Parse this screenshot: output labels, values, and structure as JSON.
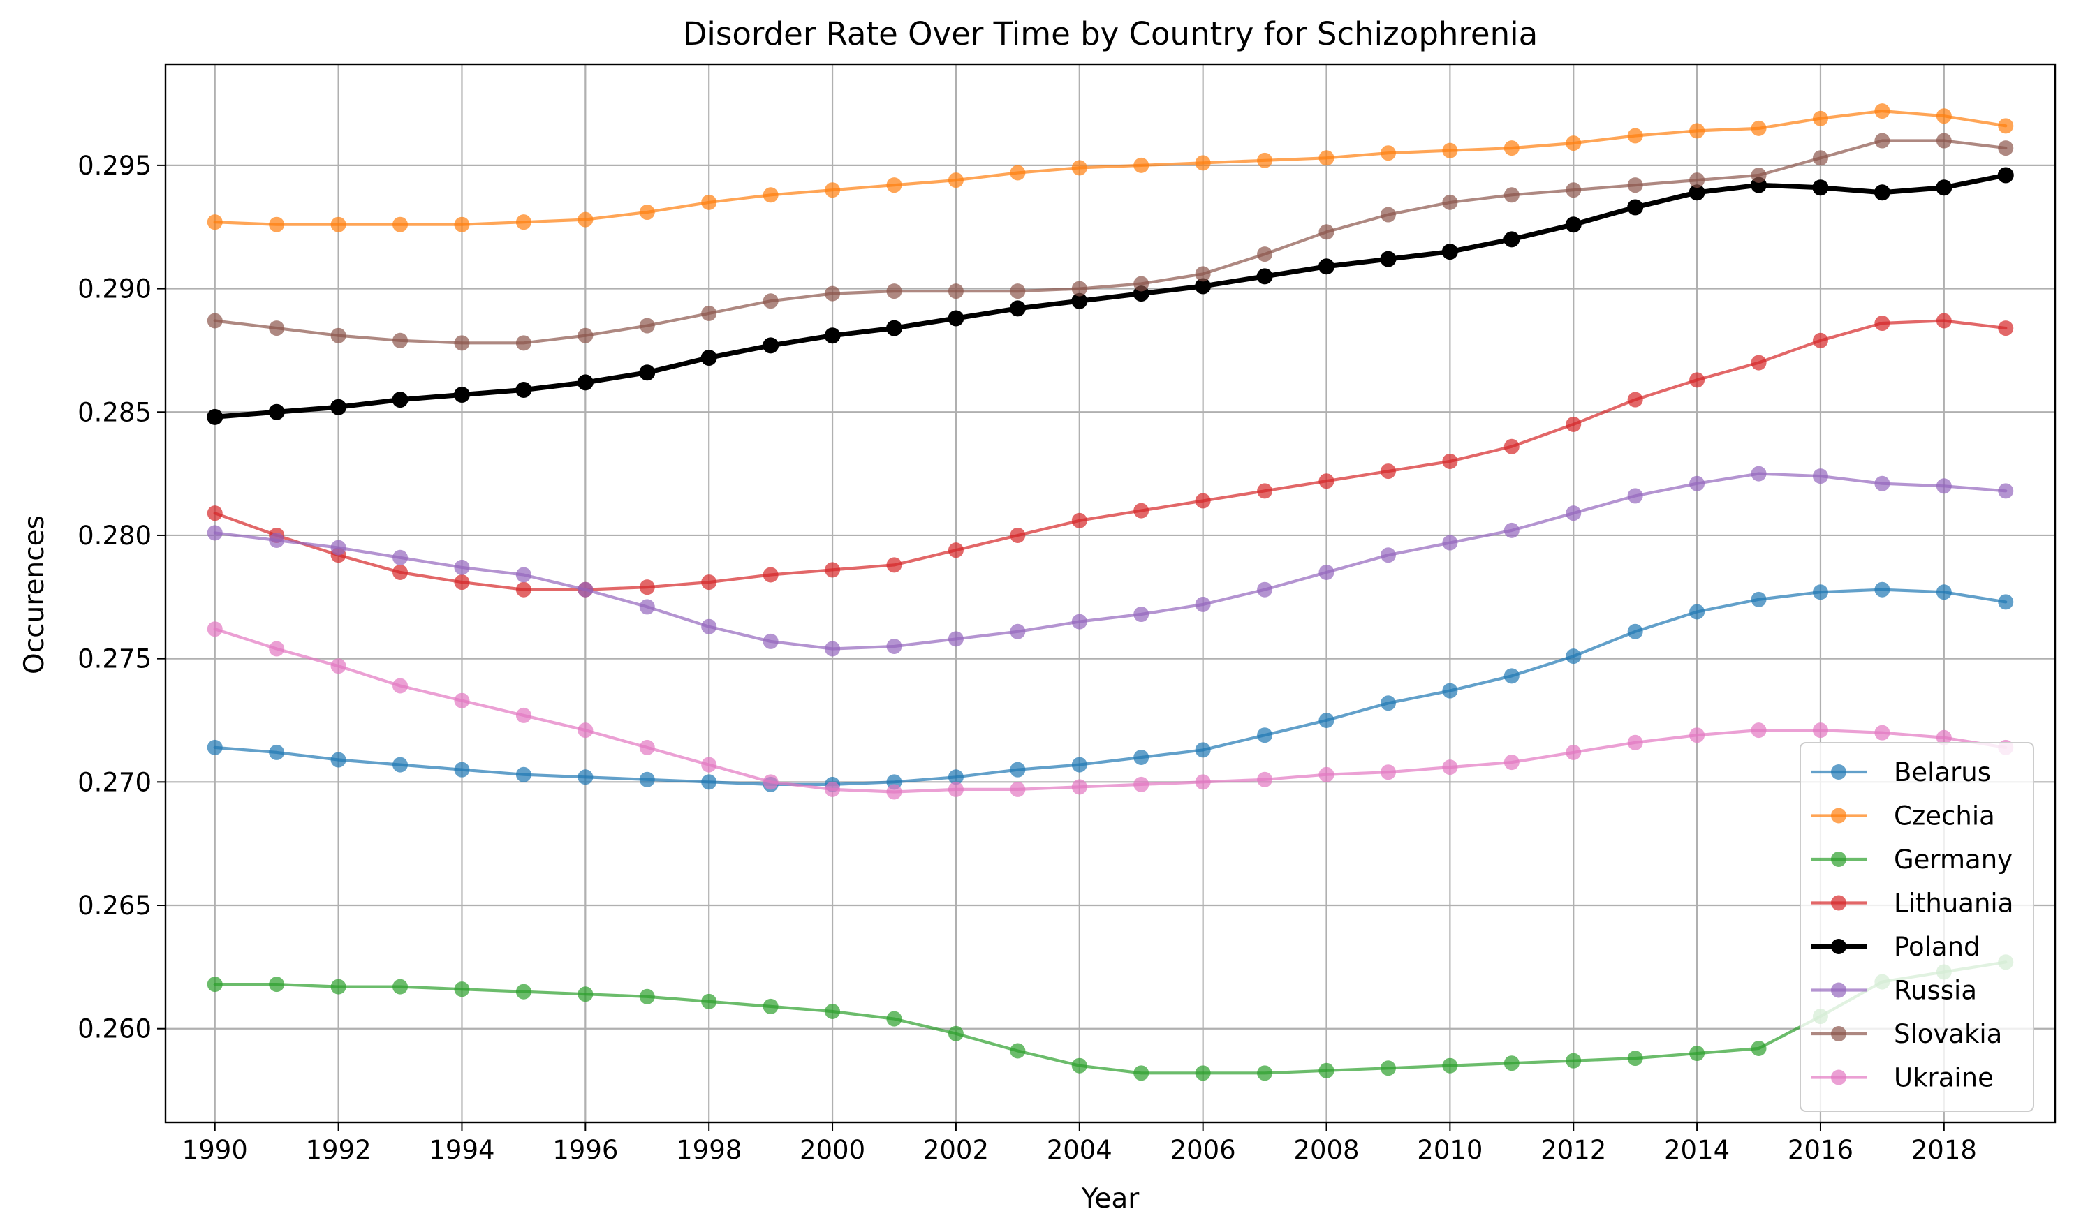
{
  "chart_data": {
    "type": "line",
    "title": "Disorder Rate Over Time by Country for Schizophrenia",
    "xlabel": "Year",
    "ylabel": "Occurences",
    "xlim": [
      1989.2,
      2019.8
    ],
    "ylim": [
      0.2562,
      0.2991
    ],
    "x_ticks": [
      1990,
      1992,
      1994,
      1996,
      1998,
      2000,
      2002,
      2004,
      2006,
      2008,
      2010,
      2012,
      2014,
      2016,
      2018
    ],
    "y_ticks": [
      0.26,
      0.265,
      0.27,
      0.275,
      0.28,
      0.285,
      0.29,
      0.295
    ],
    "y_tick_labels": [
      "0.260",
      "0.265",
      "0.270",
      "0.275",
      "0.280",
      "0.285",
      "0.290",
      "0.295"
    ],
    "grid": true,
    "legend_position": "lower-right",
    "x": [
      1990,
      1991,
      1992,
      1993,
      1994,
      1995,
      1996,
      1997,
      1998,
      1999,
      2000,
      2001,
      2002,
      2003,
      2004,
      2005,
      2006,
      2007,
      2008,
      2009,
      2010,
      2011,
      2012,
      2013,
      2014,
      2015,
      2016,
      2017,
      2018,
      2019
    ],
    "series": [
      {
        "name": "Belarus",
        "color": "#1f77b4",
        "highlight": false,
        "values": [
          0.2714,
          0.2712,
          0.2709,
          0.2707,
          0.2705,
          0.2703,
          0.2702,
          0.2701,
          0.27,
          0.2699,
          0.2699,
          0.27,
          0.2702,
          0.2705,
          0.2707,
          0.271,
          0.2713,
          0.2719,
          0.2725,
          0.2732,
          0.2737,
          0.2743,
          0.2751,
          0.2761,
          0.2769,
          0.2774,
          0.2777,
          0.2778,
          0.2777,
          0.2773
        ]
      },
      {
        "name": "Czechia",
        "color": "#ff7f0e",
        "highlight": false,
        "values": [
          0.2927,
          0.2926,
          0.2926,
          0.2926,
          0.2926,
          0.2927,
          0.2928,
          0.2931,
          0.2935,
          0.2938,
          0.294,
          0.2942,
          0.2944,
          0.2947,
          0.2949,
          0.295,
          0.2951,
          0.2952,
          0.2953,
          0.2955,
          0.2956,
          0.2957,
          0.2959,
          0.2962,
          0.2964,
          0.2965,
          0.2969,
          0.2972,
          0.297,
          0.2966
        ]
      },
      {
        "name": "Germany",
        "color": "#2ca02c",
        "highlight": false,
        "values": [
          0.2618,
          0.2618,
          0.2617,
          0.2617,
          0.2616,
          0.2615,
          0.2614,
          0.2613,
          0.2611,
          0.2609,
          0.2607,
          0.2604,
          0.2598,
          0.2591,
          0.2585,
          0.2582,
          0.2582,
          0.2582,
          0.2583,
          0.2584,
          0.2585,
          0.2586,
          0.2587,
          0.2588,
          0.259,
          0.2592,
          0.2605,
          0.2619,
          0.2623,
          0.2627
        ]
      },
      {
        "name": "Lithuania",
        "color": "#d62728",
        "highlight": false,
        "values": [
          0.2809,
          0.28,
          0.2792,
          0.2785,
          0.2781,
          0.2778,
          0.2778,
          0.2779,
          0.2781,
          0.2784,
          0.2786,
          0.2788,
          0.2794,
          0.28,
          0.2806,
          0.281,
          0.2814,
          0.2818,
          0.2822,
          0.2826,
          0.283,
          0.2836,
          0.2845,
          0.2855,
          0.2863,
          0.287,
          0.2879,
          0.2886,
          0.2887,
          0.2884
        ]
      },
      {
        "name": "Poland",
        "color": "#000000",
        "highlight": true,
        "values": [
          0.2848,
          0.285,
          0.2852,
          0.2855,
          0.2857,
          0.2859,
          0.2862,
          0.2866,
          0.2872,
          0.2877,
          0.2881,
          0.2884,
          0.2888,
          0.2892,
          0.2895,
          0.2898,
          0.2901,
          0.2905,
          0.2909,
          0.2912,
          0.2915,
          0.292,
          0.2926,
          0.2933,
          0.2939,
          0.2942,
          0.2941,
          0.2939,
          0.2941,
          0.2946
        ]
      },
      {
        "name": "Russia",
        "color": "#9467bd",
        "highlight": false,
        "values": [
          0.2801,
          0.2798,
          0.2795,
          0.2791,
          0.2787,
          0.2784,
          0.2778,
          0.2771,
          0.2763,
          0.2757,
          0.2754,
          0.2755,
          0.2758,
          0.2761,
          0.2765,
          0.2768,
          0.2772,
          0.2778,
          0.2785,
          0.2792,
          0.2797,
          0.2802,
          0.2809,
          0.2816,
          0.2821,
          0.2825,
          0.2824,
          0.2821,
          0.282,
          0.2818
        ]
      },
      {
        "name": "Slovakia",
        "color": "#8c564b",
        "highlight": false,
        "values": [
          0.2887,
          0.2884,
          0.2881,
          0.2879,
          0.2878,
          0.2878,
          0.2881,
          0.2885,
          0.289,
          0.2895,
          0.2898,
          0.2899,
          0.2899,
          0.2899,
          0.29,
          0.2902,
          0.2906,
          0.2914,
          0.2923,
          0.293,
          0.2935,
          0.2938,
          0.294,
          0.2942,
          0.2944,
          0.2946,
          0.2953,
          0.296,
          0.296,
          0.2957
        ]
      },
      {
        "name": "Ukraine",
        "color": "#e377c2",
        "highlight": false,
        "values": [
          0.2762,
          0.2754,
          0.2747,
          0.2739,
          0.2733,
          0.2727,
          0.2721,
          0.2714,
          0.2707,
          0.27,
          0.2697,
          0.2696,
          0.2697,
          0.2697,
          0.2698,
          0.2699,
          0.27,
          0.2701,
          0.2703,
          0.2704,
          0.2706,
          0.2708,
          0.2712,
          0.2716,
          0.2719,
          0.2721,
          0.2721,
          0.272,
          0.2718,
          0.2714
        ]
      }
    ]
  }
}
